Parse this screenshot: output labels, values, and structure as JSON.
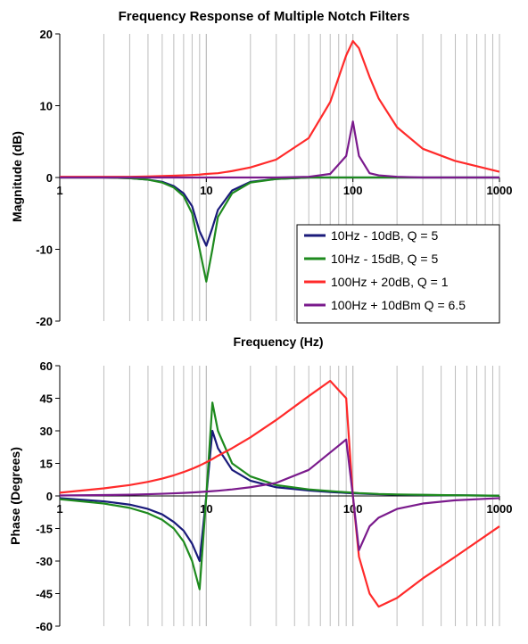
{
  "title": "Frequency Response of Multiple Notch Filters",
  "series_colors": {
    "s1": "#1a1a7a",
    "s2": "#1e8a1e",
    "s3": "#ff2a2a",
    "s4": "#7a1a8c"
  },
  "chart_data": [
    {
      "type": "line",
      "title": "Frequency Response of Multiple Notch Filters",
      "xlabel": "Frequency (Hz)",
      "ylabel": "Magnitude (dB)",
      "xscale": "log",
      "xlim": [
        1,
        1000
      ],
      "ylim": [
        -20,
        20
      ],
      "x_ticks": [
        "1",
        "10",
        "100",
        "1000"
      ],
      "y_ticks": [
        "20",
        "10",
        "0",
        "-10",
        "-20"
      ],
      "grid": "vertical log-decade lines",
      "legend_position": "bottom-right",
      "x": [
        1,
        2,
        3,
        4,
        5,
        6,
        7,
        8,
        9,
        10,
        11,
        12,
        15,
        20,
        30,
        50,
        70,
        90,
        100,
        110,
        130,
        150,
        200,
        300,
        500,
        1000
      ],
      "series": [
        {
          "name": "10Hz - 10dB, Q = 5",
          "color": "#1a1a7a",
          "values": [
            0,
            0,
            -0.1,
            -0.3,
            -0.6,
            -1.2,
            -2.2,
            -4.0,
            -7.5,
            -9.5,
            -7.0,
            -4.5,
            -1.8,
            -0.6,
            -0.2,
            0,
            0,
            0,
            0,
            0,
            0,
            0,
            0,
            0,
            0,
            0
          ]
        },
        {
          "name": "10Hz - 15dB, Q = 5",
          "color": "#1e8a1e",
          "values": [
            0,
            0,
            -0.1,
            -0.3,
            -0.7,
            -1.4,
            -2.6,
            -5.0,
            -10.0,
            -14.5,
            -10.0,
            -5.5,
            -2.2,
            -0.7,
            -0.2,
            0,
            0,
            0,
            0,
            0,
            0,
            0,
            0,
            0,
            0,
            0
          ]
        },
        {
          "name": "100Hz + 20dB, Q = 1",
          "color": "#ff2a2a",
          "values": [
            0.1,
            0.1,
            0.1,
            0.15,
            0.2,
            0.25,
            0.3,
            0.35,
            0.4,
            0.5,
            0.55,
            0.6,
            0.9,
            1.4,
            2.5,
            5.5,
            10.5,
            17.0,
            19.0,
            18.0,
            14.0,
            11.0,
            7.0,
            4.0,
            2.3,
            0.8
          ]
        },
        {
          "name": "100Hz + 10dBm Q = 6.5",
          "color": "#7a1a8c",
          "values": [
            0,
            0,
            0,
            0,
            0,
            0,
            0,
            0,
            0,
            0,
            0,
            0,
            0,
            0,
            0,
            0.1,
            0.5,
            3.0,
            7.8,
            3.0,
            0.6,
            0.3,
            0.1,
            0,
            0,
            0
          ]
        }
      ]
    },
    {
      "type": "line",
      "xlabel": "",
      "ylabel": "Phase (Degrees)",
      "xscale": "log",
      "xlim": [
        1,
        1000
      ],
      "ylim": [
        -60,
        60
      ],
      "x_ticks": [
        "1",
        "10",
        "100",
        "1000"
      ],
      "y_ticks": [
        "60",
        "45",
        "30",
        "15",
        "0",
        "-15",
        "-30",
        "-45",
        "-60"
      ],
      "grid": "vertical log-decade lines",
      "x": [
        1,
        2,
        3,
        4,
        5,
        6,
        7,
        8,
        9,
        10,
        11,
        12,
        15,
        20,
        30,
        50,
        70,
        90,
        100,
        110,
        130,
        150,
        200,
        300,
        500,
        1000
      ],
      "series": [
        {
          "name": "10Hz - 10dB, Q = 5",
          "color": "#1a1a7a",
          "values": [
            -1,
            -2.5,
            -4,
            -6,
            -8.5,
            -12,
            -16,
            -22,
            -30,
            0,
            30,
            22,
            12,
            7,
            4,
            2.5,
            1.8,
            1.4,
            1.2,
            1.1,
            0.9,
            0.8,
            0.6,
            0.4,
            0.3,
            0.1
          ]
        },
        {
          "name": "10Hz - 15dB, Q = 5",
          "color": "#1e8a1e",
          "values": [
            -1.5,
            -3.5,
            -5.5,
            -8,
            -11,
            -15,
            -21,
            -30,
            -43,
            0,
            43,
            30,
            15,
            9,
            5,
            3,
            2.2,
            1.7,
            1.5,
            1.3,
            1.1,
            0.9,
            0.7,
            0.5,
            0.3,
            0.1
          ]
        },
        {
          "name": "100Hz + 20dB, Q = 1",
          "color": "#ff2a2a",
          "values": [
            1.5,
            3.5,
            5,
            6.5,
            8,
            9.5,
            11,
            12.5,
            14,
            15.5,
            17,
            18.5,
            22,
            27,
            35,
            46,
            53,
            45,
            0,
            -28,
            -45,
            -51,
            -47,
            -38,
            -28,
            -14
          ]
        },
        {
          "name": "100Hz + 10dBm Q = 6.5",
          "color": "#7a1a8c",
          "values": [
            0.2,
            0.4,
            0.6,
            0.8,
            1,
            1.2,
            1.4,
            1.6,
            1.8,
            2,
            2.2,
            2.4,
            3,
            4,
            6,
            12,
            20,
            26,
            0,
            -25,
            -14,
            -10,
            -6,
            -3.5,
            -2,
            -1
          ]
        }
      ]
    }
  ]
}
